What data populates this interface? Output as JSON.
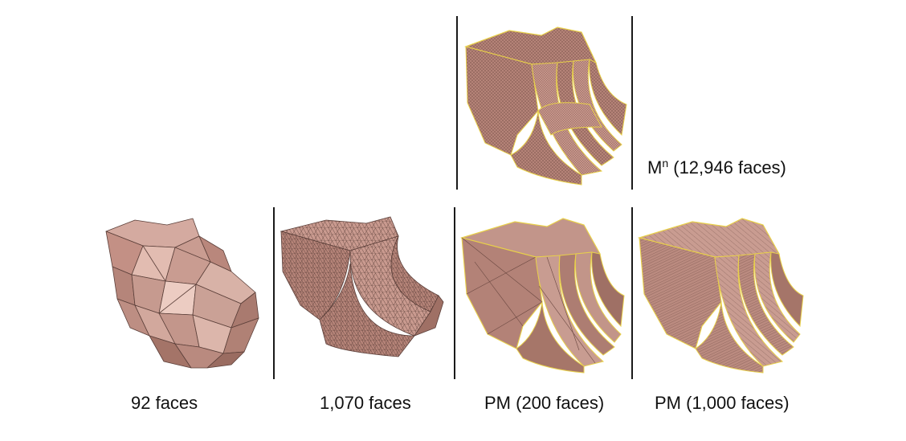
{
  "colors": {
    "mesh_fill": "#c79a90",
    "mesh_light": "#e7c3b8",
    "mesh_dark": "#8a5f56",
    "wire": "#5b3f39",
    "feature_edge": "#e8d04a"
  },
  "panels": {
    "full": {
      "caption_main": "M",
      "caption_sup": "n",
      "caption_rest": " (12,946 faces)"
    },
    "base92": {
      "caption": "92 faces"
    },
    "base1070": {
      "caption": "1,070 faces"
    },
    "pm200": {
      "caption": "PM (200 faces)"
    },
    "pm1000": {
      "caption": "PM (1,000 faces)"
    }
  }
}
